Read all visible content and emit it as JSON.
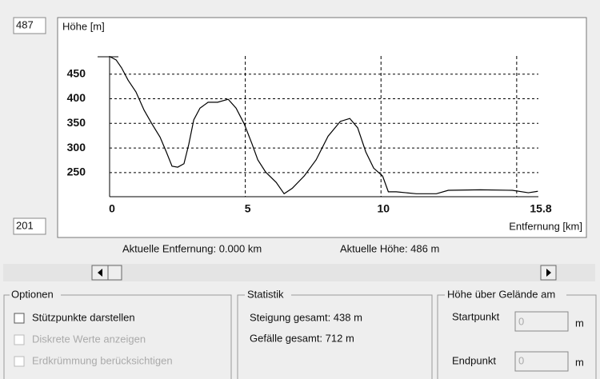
{
  "chart_data": {
    "type": "line",
    "y_label": "Höhe [m]",
    "x_label": "Entfernung [km]",
    "xlim": [
      0,
      15.8
    ],
    "ylim": [
      201,
      487
    ],
    "xticks": [
      0,
      5,
      10,
      15.8
    ],
    "yticks": [
      250,
      300,
      350,
      400,
      450
    ],
    "x_grid": [
      5,
      10,
      15
    ],
    "y_grid": true,
    "color": "#000000",
    "x": [
      0,
      0.24,
      0.44,
      0.68,
      0.97,
      1.27,
      1.56,
      1.86,
      2.09,
      2.3,
      2.51,
      2.74,
      2.92,
      3.1,
      3.33,
      3.63,
      3.98,
      4.37,
      4.66,
      4.96,
      5.25,
      5.46,
      5.75,
      6.14,
      6.43,
      6.73,
      7.17,
      7.61,
      8.05,
      8.5,
      8.85,
      9.14,
      9.44,
      9.73,
      10.06,
      10.27,
      10.56,
      11.3,
      12.04,
      12.48,
      13.66,
      14.84,
      15.43,
      15.78
    ],
    "values": [
      486,
      479,
      463,
      438,
      414,
      377,
      349,
      322,
      292,
      263,
      261,
      268,
      308,
      357,
      381,
      393,
      393,
      399,
      381,
      349,
      308,
      276,
      251,
      230,
      207,
      218,
      243,
      276,
      324,
      354,
      360,
      341,
      292,
      259,
      243,
      211,
      211,
      207,
      207,
      214,
      215,
      214,
      209,
      212
    ]
  },
  "status": {
    "distance": "Aktuelle Entfernung: 0.000 km",
    "height": "Aktuelle Höhe: 486 m"
  },
  "options": {
    "title": "Optionen",
    "items": [
      {
        "label": "Stützpunkte darstellen",
        "enabled": true
      },
      {
        "label": "Diskrete Werte anzeigen",
        "enabled": false
      },
      {
        "label": "Erdkrümmung berücksichtigen",
        "enabled": false
      }
    ]
  },
  "statistics": {
    "title": "Statistik",
    "lines": [
      "Steigung gesamt: 438 m",
      "Gefälle gesamt: 712 m"
    ]
  },
  "height_above": {
    "title": "Höhe über Gelände am",
    "start": {
      "label": "Startpunkt",
      "value": "0",
      "unit": "m"
    },
    "end": {
      "label": "Endpunkt",
      "value": "0",
      "unit": "m"
    }
  }
}
